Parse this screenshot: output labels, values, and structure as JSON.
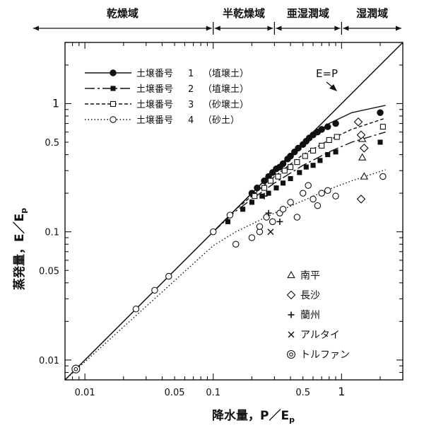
{
  "chart_data": {
    "type": "scatter",
    "xscale": "log",
    "yscale": "log",
    "xlim": [
      0.007,
      3
    ],
    "ylim": [
      0.007,
      3
    ],
    "xlabel": "降水量，P／E",
    "xlabel_sub": "p",
    "ylabel": "蒸発量，E／E",
    "ylabel_sub": "p",
    "x_ticks": [
      {
        "value": 0.01,
        "label": "0.01"
      },
      {
        "value": 0.05,
        "label": "0.05"
      },
      {
        "value": 0.1,
        "label": "0.1"
      },
      {
        "value": 0.5,
        "label": "0.5"
      },
      {
        "value": 1,
        "label": "1"
      }
    ],
    "y_ticks": [
      {
        "value": 0.01,
        "label": "0.01"
      },
      {
        "value": 0.05,
        "label": "0.05"
      },
      {
        "value": 0.1,
        "label": "0.1"
      },
      {
        "value": 0.5,
        "label": "0.5"
      },
      {
        "value": 1,
        "label": "1"
      }
    ],
    "zones": [
      {
        "label": "乾燥域",
        "x_from": 0.007,
        "x_to": 0.1
      },
      {
        "label": "半乾燥域",
        "x_from": 0.1,
        "x_to": 0.3
      },
      {
        "label": "亜湿潤域",
        "x_from": 0.3,
        "x_to": 1
      },
      {
        "label": "湿潤域",
        "x_from": 1,
        "x_to": 3
      }
    ],
    "ep_line": {
      "label": "E=P",
      "x": [
        0.007,
        3
      ],
      "y": [
        0.007,
        3
      ]
    },
    "curves": [
      {
        "name": "土壌番号",
        "num": "1",
        "soil": "（埴壌土）",
        "marker": "filled-circle",
        "dash": "",
        "x": [
          0.1,
          0.15,
          0.2,
          0.3,
          0.5,
          0.8,
          1.2,
          2.2
        ],
        "y": [
          0.1,
          0.15,
          0.2,
          0.3,
          0.49,
          0.7,
          0.85,
          0.97
        ]
      },
      {
        "name": "土壌番号",
        "num": "2",
        "soil": "（埴壌土）",
        "marker": "filled-square",
        "dash": "14,4,3,4",
        "x": [
          0.1,
          0.15,
          0.2,
          0.3,
          0.5,
          0.8,
          1.2,
          2.2
        ],
        "y": [
          0.1,
          0.145,
          0.18,
          0.24,
          0.33,
          0.42,
          0.5,
          0.6
        ]
      },
      {
        "name": "土壌番号",
        "num": "3",
        "soil": "（砂壌土）",
        "marker": "open-square",
        "dash": "5,3",
        "x": [
          0.1,
          0.15,
          0.2,
          0.3,
          0.5,
          0.8,
          1.2,
          2.2
        ],
        "y": [
          0.1,
          0.15,
          0.19,
          0.27,
          0.4,
          0.52,
          0.63,
          0.77
        ]
      },
      {
        "name": "土壌番号",
        "num": "4",
        "soil": "（砂土）",
        "marker": "open-circle",
        "dash": "1.5,3",
        "x": [
          0.007,
          0.1,
          0.15,
          0.2,
          0.3,
          0.5,
          0.8,
          1.2,
          2.2
        ],
        "y": [
          0.007,
          0.078,
          0.1,
          0.115,
          0.14,
          0.175,
          0.215,
          0.25,
          0.305
        ]
      }
    ],
    "points": [
      {
        "marker": "open-circle-double",
        "x": [
          0.0085
        ],
        "y": [
          0.0085
        ]
      },
      {
        "marker": "open-circle",
        "x": [
          0.025,
          0.035,
          0.045,
          0.1,
          0.135
        ],
        "y": [
          0.025,
          0.035,
          0.045,
          0.1,
          0.135
        ]
      },
      {
        "marker": "filled-circle",
        "x": [
          0.2,
          0.22,
          0.25,
          0.27,
          0.29,
          0.31,
          0.33,
          0.35,
          0.38,
          0.4,
          0.43,
          0.46,
          0.5,
          0.53,
          0.56,
          0.6,
          0.65,
          0.7,
          0.78,
          0.9,
          2.0
        ],
        "y": [
          0.2,
          0.22,
          0.25,
          0.27,
          0.29,
          0.31,
          0.32,
          0.34,
          0.37,
          0.39,
          0.42,
          0.45,
          0.48,
          0.51,
          0.54,
          0.57,
          0.6,
          0.63,
          0.66,
          0.7,
          0.85
        ]
      },
      {
        "marker": "filled-square",
        "x": [
          0.13,
          0.17,
          0.2,
          0.24,
          0.27,
          0.31,
          0.35,
          0.4,
          0.47,
          0.53,
          0.6,
          0.68,
          0.78,
          0.9,
          2.0
        ],
        "y": [
          0.12,
          0.15,
          0.17,
          0.19,
          0.2,
          0.22,
          0.24,
          0.26,
          0.29,
          0.32,
          0.33,
          0.36,
          0.4,
          0.42,
          0.5
        ]
      },
      {
        "marker": "open-square",
        "x": [
          0.21,
          0.25,
          0.28,
          0.32,
          0.36,
          0.4,
          0.45,
          0.52,
          0.6,
          0.7,
          0.8,
          0.92,
          2.1
        ],
        "y": [
          0.19,
          0.22,
          0.25,
          0.27,
          0.3,
          0.32,
          0.35,
          0.39,
          0.43,
          0.47,
          0.52,
          0.55,
          0.66
        ]
      },
      {
        "marker": "open-circle",
        "x": [
          0.15,
          0.2,
          0.23,
          0.23,
          0.26,
          0.29,
          0.33,
          0.35,
          0.4,
          0.45,
          0.5,
          0.55,
          0.6,
          0.65,
          0.7,
          0.78,
          0.9,
          2.1
        ],
        "y": [
          0.08,
          0.09,
          0.1,
          0.11,
          0.13,
          0.12,
          0.14,
          0.15,
          0.17,
          0.13,
          0.2,
          0.23,
          0.18,
          0.16,
          0.2,
          0.21,
          0.19,
          0.27
        ]
      },
      {
        "marker": "triangle",
        "x": [
          1.45,
          1.45,
          1.5
        ],
        "y": [
          0.38,
          0.53,
          0.27
        ]
      },
      {
        "marker": "diamond",
        "x": [
          1.35,
          1.42,
          1.5,
          1.42
        ],
        "y": [
          0.72,
          0.57,
          0.45,
          0.18
        ]
      },
      {
        "marker": "plus",
        "x": [
          0.25,
          0.27,
          0.33
        ],
        "y": [
          0.19,
          0.14,
          0.12
        ]
      },
      {
        "marker": "cross",
        "x": [
          0.28
        ],
        "y": [
          0.1
        ]
      }
    ],
    "station_legend": [
      {
        "label": "南平",
        "marker": "triangle"
      },
      {
        "label": "長沙",
        "marker": "diamond"
      },
      {
        "label": "蘭州",
        "marker": "plus"
      },
      {
        "label": "アルタイ",
        "marker": "cross"
      },
      {
        "label": "トルファン",
        "marker": "open-circle-double"
      }
    ],
    "legend_position": "top-left"
  }
}
